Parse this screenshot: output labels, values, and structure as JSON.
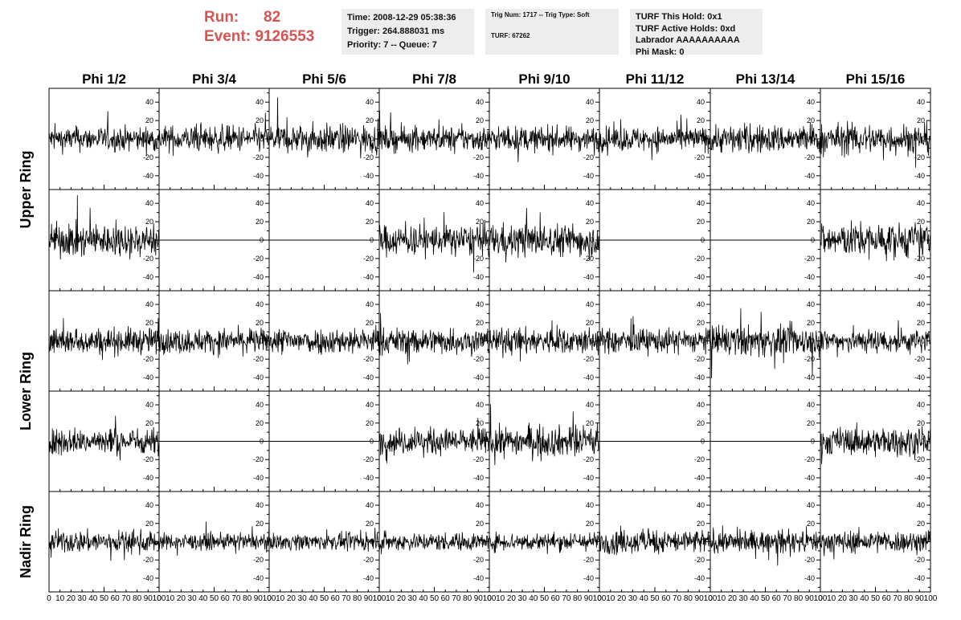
{
  "header": {
    "run_label": "Run:",
    "run_value": "82",
    "event_label": "Event:",
    "event_value": "9126553",
    "time": "Time: 2008-12-29 05:38:36",
    "trigger": "Trigger: 264.888031 ms",
    "priority": "Priority: 7 -- Queue: 7",
    "trig_num": "Trig Num: 1717 -- Trig Type: Soft",
    "turf": "TURF: 67262",
    "turf_hold": "TURF This Hold: 0x1",
    "turf_active": "TURF Active Holds: 0xd",
    "labrador": "Labrador AAAAAAAAAA",
    "phi_mask": "Phi Mask: 0"
  },
  "chart_data": {
    "type": "line",
    "columns": [
      "Phi 1/2",
      "Phi 3/4",
      "Phi 5/6",
      "Phi 7/8",
      "Phi 9/10",
      "Phi 11/12",
      "Phi 13/14",
      "Phi 15/16"
    ],
    "rows": [
      "Upper Ring",
      "Lower Ring",
      "Nadir Ring"
    ],
    "y_ticks": [
      "-40",
      "-20",
      "0",
      "20",
      "40"
    ],
    "x_ticks": [
      "0",
      "10",
      "20",
      "30",
      "40",
      "50",
      "60",
      "70",
      "80",
      "90",
      "100"
    ],
    "ylim": [
      -55,
      55
    ],
    "xlim": [
      0,
      100
    ],
    "flat_panels": [
      [
        1,
        1
      ],
      [
        1,
        2
      ],
      [
        1,
        5
      ],
      [
        1,
        6
      ],
      [
        3,
        1
      ],
      [
        3,
        2
      ],
      [
        3,
        5
      ],
      [
        3,
        6
      ]
    ],
    "amplitudes": [
      [
        12,
        13,
        14,
        12,
        12,
        12,
        14,
        15
      ],
      [
        16,
        0,
        0,
        15,
        16,
        0,
        0,
        17
      ],
      [
        13,
        12,
        13,
        13,
        13,
        12,
        15,
        12
      ],
      [
        13,
        0,
        0,
        13,
        15,
        0,
        0,
        14
      ],
      [
        11,
        8,
        8,
        9,
        9,
        12,
        11,
        11
      ]
    ],
    "grid": false
  }
}
